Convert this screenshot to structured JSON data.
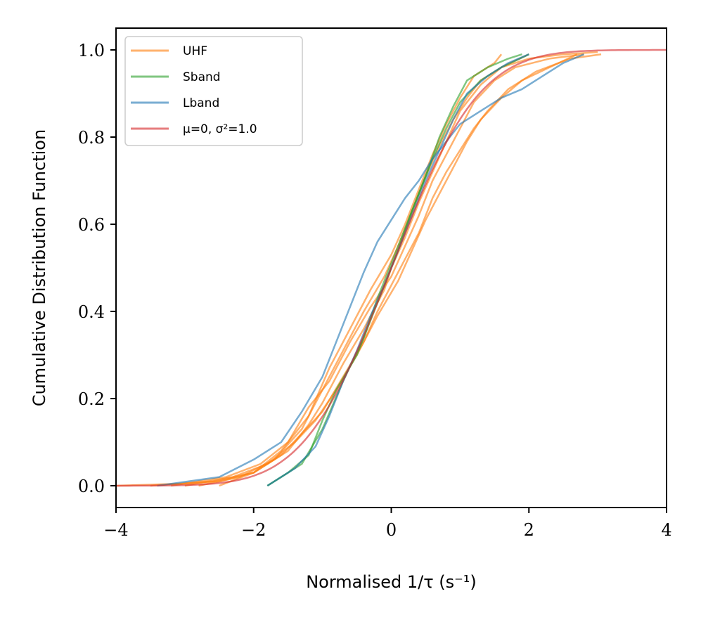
{
  "chart_data": {
    "type": "line",
    "title": "",
    "xlabel": "Normalised 1/τ (s⁻¹)",
    "ylabel": "Cumulative Distribution Function",
    "xlim": [
      -4,
      4
    ],
    "ylim": [
      -0.05,
      1.05
    ],
    "xticks": [
      -4,
      -2,
      0,
      2,
      4
    ],
    "xtick_labels": [
      "−4",
      "−2",
      "0",
      "2",
      "4"
    ],
    "yticks": [
      0.0,
      0.2,
      0.4,
      0.6,
      0.8,
      1.0
    ],
    "ytick_labels": [
      "0.0",
      "0.2",
      "0.4",
      "0.6",
      "0.8",
      "1.0"
    ],
    "grid": false,
    "legend_position": "top-left",
    "legend": [
      {
        "label": "UHF",
        "color": "#ff7f0e"
      },
      {
        "label": "Sband",
        "color": "#2ca02c"
      },
      {
        "label": "Lband",
        "color": "#1f77b4"
      },
      {
        "label": "μ=0, σ²=1.0",
        "color": "#d62728"
      }
    ],
    "series": [
      {
        "name": "UHF",
        "color": "#ff7f0e",
        "points": [
          [
            -4.0,
            0.0
          ],
          [
            -3.0,
            0.005
          ],
          [
            -2.5,
            0.01
          ],
          [
            -2.0,
            0.03
          ],
          [
            -1.5,
            0.08
          ],
          [
            -1.2,
            0.14
          ],
          [
            -1.0,
            0.19
          ],
          [
            -0.7,
            0.28
          ],
          [
            -0.4,
            0.36
          ],
          [
            -0.1,
            0.45
          ],
          [
            0.0,
            0.5
          ],
          [
            0.2,
            0.57
          ],
          [
            0.4,
            0.65
          ],
          [
            0.6,
            0.72
          ],
          [
            0.8,
            0.79
          ],
          [
            1.0,
            0.86
          ],
          [
            1.3,
            0.92
          ],
          [
            1.6,
            0.96
          ],
          [
            2.0,
            0.98
          ],
          [
            2.5,
            0.99
          ],
          [
            3.0,
            0.995
          ]
        ]
      },
      {
        "name": "UHF",
        "color": "#ff7f0e",
        "points": [
          [
            -3.2,
            0.0
          ],
          [
            -2.4,
            0.02
          ],
          [
            -1.9,
            0.05
          ],
          [
            -1.5,
            0.1
          ],
          [
            -1.2,
            0.18
          ],
          [
            -0.9,
            0.24
          ],
          [
            -0.6,
            0.33
          ],
          [
            -0.3,
            0.41
          ],
          [
            0.0,
            0.48
          ],
          [
            0.2,
            0.55
          ],
          [
            0.4,
            0.62
          ],
          [
            0.6,
            0.7
          ],
          [
            0.8,
            0.76
          ],
          [
            1.0,
            0.82
          ],
          [
            1.2,
            0.88
          ],
          [
            1.5,
            0.93
          ],
          [
            1.8,
            0.96
          ],
          [
            2.3,
            0.98
          ],
          [
            2.8,
            0.99
          ]
        ]
      },
      {
        "name": "UHF",
        "color": "#ff7f0e",
        "points": [
          [
            -2.8,
            0.0
          ],
          [
            -2.2,
            0.02
          ],
          [
            -1.7,
            0.06
          ],
          [
            -1.3,
            0.13
          ],
          [
            -1.0,
            0.22
          ],
          [
            -0.7,
            0.31
          ],
          [
            -0.4,
            0.4
          ],
          [
            -0.1,
            0.48
          ],
          [
            0.1,
            0.55
          ],
          [
            0.3,
            0.63
          ],
          [
            0.5,
            0.71
          ],
          [
            0.7,
            0.78
          ],
          [
            0.9,
            0.84
          ],
          [
            1.1,
            0.89
          ],
          [
            1.3,
            0.93
          ],
          [
            1.6,
            0.96
          ],
          [
            2.0,
            0.99
          ]
        ]
      },
      {
        "name": "UHF",
        "color": "#ff7f0e",
        "points": [
          [
            -3.5,
            0.0
          ],
          [
            -2.6,
            0.01
          ],
          [
            -2.0,
            0.03
          ],
          [
            -1.6,
            0.07
          ],
          [
            -1.3,
            0.12
          ],
          [
            -1.0,
            0.17
          ],
          [
            -0.7,
            0.25
          ],
          [
            -0.4,
            0.33
          ],
          [
            -0.2,
            0.4
          ],
          [
            0.0,
            0.46
          ],
          [
            0.2,
            0.52
          ],
          [
            0.4,
            0.58
          ],
          [
            0.6,
            0.66
          ],
          [
            0.8,
            0.72
          ],
          [
            1.0,
            0.77
          ],
          [
            1.2,
            0.82
          ],
          [
            1.4,
            0.86
          ],
          [
            1.7,
            0.91
          ],
          [
            2.1,
            0.95
          ],
          [
            2.6,
            0.98
          ],
          [
            3.05,
            0.99
          ]
        ]
      },
      {
        "name": "UHF",
        "color": "#ff7f0e",
        "points": [
          [
            -2.5,
            0.0
          ],
          [
            -2.0,
            0.03
          ],
          [
            -1.6,
            0.08
          ],
          [
            -1.2,
            0.16
          ],
          [
            -0.9,
            0.27
          ],
          [
            -0.6,
            0.36
          ],
          [
            -0.3,
            0.45
          ],
          [
            0.0,
            0.53
          ],
          [
            0.2,
            0.6
          ],
          [
            0.4,
            0.68
          ],
          [
            0.6,
            0.76
          ],
          [
            0.8,
            0.83
          ],
          [
            1.0,
            0.89
          ],
          [
            1.2,
            0.94
          ],
          [
            1.5,
            0.97
          ],
          [
            1.6,
            0.99
          ]
        ]
      },
      {
        "name": "UHF",
        "color": "#ff7f0e",
        "points": [
          [
            -3.0,
            0.0
          ],
          [
            -2.3,
            0.02
          ],
          [
            -1.8,
            0.05
          ],
          [
            -1.4,
            0.1
          ],
          [
            -1.1,
            0.15
          ],
          [
            -0.8,
            0.22
          ],
          [
            -0.5,
            0.3
          ],
          [
            -0.2,
            0.39
          ],
          [
            0.1,
            0.47
          ],
          [
            0.3,
            0.54
          ],
          [
            0.5,
            0.61
          ],
          [
            0.7,
            0.67
          ],
          [
            0.9,
            0.73
          ],
          [
            1.1,
            0.79
          ],
          [
            1.3,
            0.84
          ],
          [
            1.6,
            0.89
          ],
          [
            1.9,
            0.93
          ],
          [
            2.3,
            0.96
          ],
          [
            2.7,
            0.99
          ]
        ]
      },
      {
        "name": "Sband",
        "color": "#2ca02c",
        "points": [
          [
            -1.8,
            0.0
          ],
          [
            -1.5,
            0.03
          ],
          [
            -1.2,
            0.07
          ],
          [
            -1.0,
            0.15
          ],
          [
            -0.8,
            0.22
          ],
          [
            -0.5,
            0.3
          ],
          [
            -0.3,
            0.38
          ],
          [
            -0.1,
            0.46
          ],
          [
            0.1,
            0.54
          ],
          [
            0.3,
            0.63
          ],
          [
            0.5,
            0.71
          ],
          [
            0.7,
            0.8
          ],
          [
            0.9,
            0.87
          ],
          [
            1.1,
            0.93
          ],
          [
            1.4,
            0.96
          ],
          [
            1.7,
            0.98
          ],
          [
            1.9,
            0.99
          ]
        ]
      },
      {
        "name": "Sband",
        "color": "#2ca02c",
        "points": [
          [
            -1.8,
            0.0
          ],
          [
            -1.3,
            0.05
          ],
          [
            -1.0,
            0.13
          ],
          [
            -0.7,
            0.24
          ],
          [
            -0.4,
            0.34
          ],
          [
            -0.2,
            0.43
          ],
          [
            0.0,
            0.51
          ],
          [
            0.2,
            0.59
          ],
          [
            0.4,
            0.67
          ],
          [
            0.6,
            0.75
          ],
          [
            0.8,
            0.82
          ],
          [
            1.0,
            0.88
          ],
          [
            1.3,
            0.93
          ],
          [
            1.6,
            0.96
          ],
          [
            2.0,
            0.99
          ]
        ]
      },
      {
        "name": "Lband",
        "color": "#1f77b4",
        "points": [
          [
            -3.4,
            0.0
          ],
          [
            -2.5,
            0.02
          ],
          [
            -2.0,
            0.06
          ],
          [
            -1.6,
            0.1
          ],
          [
            -1.3,
            0.17
          ],
          [
            -1.0,
            0.25
          ],
          [
            -0.8,
            0.33
          ],
          [
            -0.6,
            0.41
          ],
          [
            -0.4,
            0.49
          ],
          [
            -0.2,
            0.56
          ],
          [
            0.0,
            0.61
          ],
          [
            0.2,
            0.66
          ],
          [
            0.4,
            0.7
          ],
          [
            0.6,
            0.75
          ],
          [
            0.8,
            0.79
          ],
          [
            1.0,
            0.83
          ],
          [
            1.3,
            0.86
          ],
          [
            1.6,
            0.89
          ],
          [
            1.9,
            0.91
          ],
          [
            2.2,
            0.94
          ],
          [
            2.5,
            0.97
          ],
          [
            2.8,
            0.99
          ]
        ]
      },
      {
        "name": "Lband",
        "color": "#1f77b4",
        "points": [
          [
            -1.8,
            0.0
          ],
          [
            -1.4,
            0.04
          ],
          [
            -1.1,
            0.09
          ],
          [
            -0.9,
            0.16
          ],
          [
            -0.7,
            0.24
          ],
          [
            -0.5,
            0.31
          ],
          [
            -0.3,
            0.39
          ],
          [
            -0.1,
            0.46
          ],
          [
            0.1,
            0.54
          ],
          [
            0.3,
            0.62
          ],
          [
            0.5,
            0.7
          ],
          [
            0.7,
            0.77
          ],
          [
            0.9,
            0.84
          ],
          [
            1.1,
            0.9
          ],
          [
            1.4,
            0.94
          ],
          [
            1.7,
            0.97
          ],
          [
            2.0,
            0.99
          ]
        ]
      },
      {
        "name": "μ=0, σ²=1.0",
        "color": "#d62728",
        "function": "normal_cdf",
        "mu": 0,
        "sigma2": 1.0
      }
    ]
  }
}
